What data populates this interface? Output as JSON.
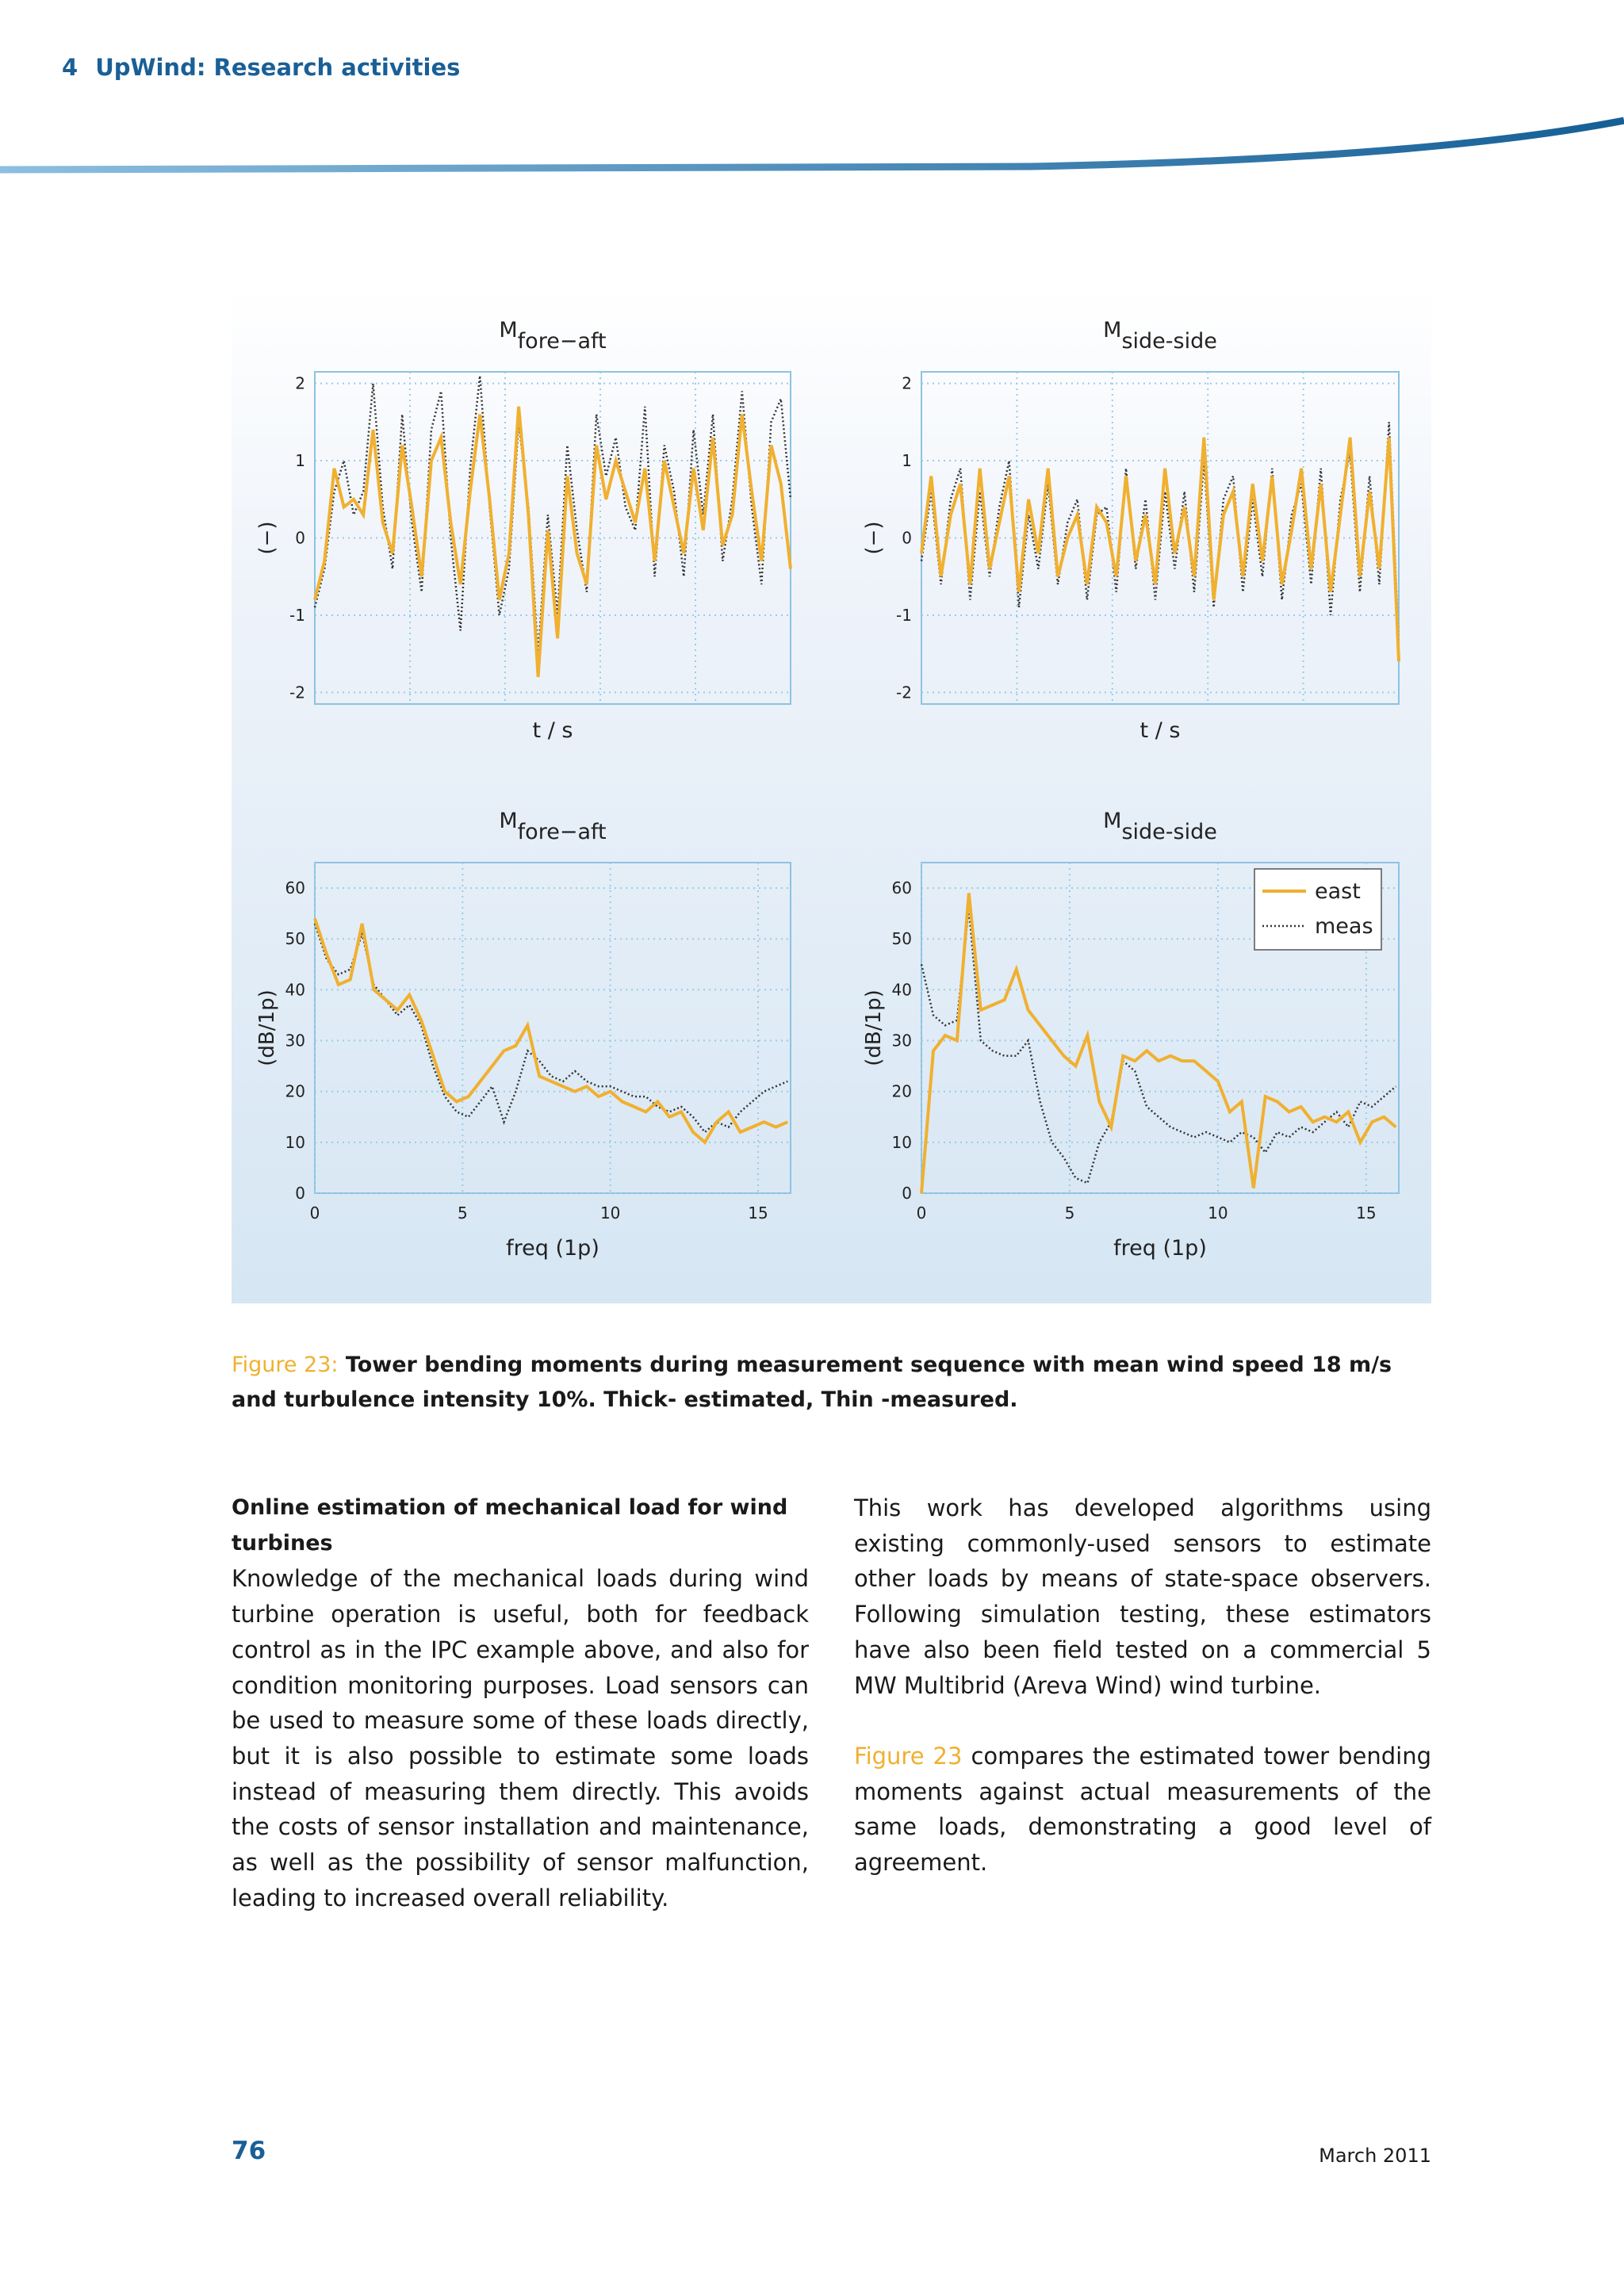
{
  "header": {
    "section": "4",
    "title": "UpWind: Research activities"
  },
  "chart_data": [
    {
      "type": "line",
      "title": {
        "main": "M",
        "sub": "fore−aft"
      },
      "y_label": "(−)",
      "x_label": "t / s",
      "ylim": [
        -2.15,
        2.15
      ],
      "yticks": [
        -2,
        -1,
        0,
        1,
        2
      ],
      "grid": true,
      "series": [
        {
          "color": "#f0b030",
          "line_style": "solid",
          "values": [
            -0.8,
            -0.3,
            0.9,
            0.4,
            0.5,
            0.3,
            1.4,
            0.2,
            -0.2,
            1.2,
            0.4,
            -0.5,
            1.0,
            1.3,
            0.2,
            -0.6,
            0.6,
            1.6,
            0.5,
            -0.8,
            -0.2,
            1.7,
            0.3,
            -1.8,
            0.1,
            -1.3,
            0.8,
            -0.2,
            -0.6,
            1.2,
            0.5,
            1.0,
            0.6,
            0.2,
            0.9,
            -0.3,
            1.0,
            0.4,
            -0.2,
            0.9,
            0.1,
            1.3,
            -0.1,
            0.3,
            1.6,
            0.6,
            -0.3,
            1.2,
            0.7,
            -0.4
          ]
        },
        {
          "color": "#333333",
          "line_style": "dotted",
          "values": [
            -0.9,
            -0.4,
            0.6,
            1.0,
            0.3,
            0.6,
            2.0,
            0.4,
            -0.4,
            1.6,
            0.2,
            -0.7,
            1.4,
            1.9,
            0.0,
            -1.2,
            0.9,
            2.1,
            0.4,
            -1.0,
            -0.4,
            1.5,
            0.4,
            -1.5,
            0.3,
            -1.0,
            1.2,
            0.1,
            -0.7,
            1.6,
            0.8,
            1.3,
            0.4,
            0.1,
            1.7,
            -0.5,
            1.2,
            0.6,
            -0.5,
            1.4,
            0.3,
            1.6,
            -0.3,
            0.5,
            1.9,
            0.4,
            -0.6,
            1.5,
            1.8,
            0.5
          ]
        }
      ]
    },
    {
      "type": "line",
      "title": {
        "main": "M",
        "sub": "side-side"
      },
      "y_label": "(−)",
      "x_label": "t / s",
      "ylim": [
        -2.15,
        2.15
      ],
      "yticks": [
        -2,
        -1,
        0,
        1,
        2
      ],
      "grid": true,
      "series": [
        {
          "color": "#f0b030",
          "line_style": "solid",
          "values": [
            -0.2,
            0.8,
            -0.5,
            0.3,
            0.7,
            -0.6,
            0.9,
            -0.4,
            0.2,
            0.8,
            -0.7,
            0.5,
            -0.2,
            0.9,
            -0.5,
            0.0,
            0.3,
            -0.6,
            0.4,
            0.2,
            -0.5,
            0.8,
            -0.3,
            0.3,
            -0.6,
            0.9,
            -0.2,
            0.4,
            -0.5,
            1.3,
            -0.8,
            0.3,
            0.6,
            -0.5,
            0.7,
            -0.3,
            0.8,
            -0.6,
            0.1,
            0.9,
            -0.4,
            0.7,
            -0.7,
            0.3,
            1.3,
            -0.5,
            0.6,
            -0.4,
            1.3,
            -1.6
          ]
        },
        {
          "color": "#333333",
          "line_style": "dotted",
          "values": [
            -0.3,
            0.6,
            -0.6,
            0.5,
            0.9,
            -0.8,
            0.6,
            -0.5,
            0.4,
            1.0,
            -0.9,
            0.3,
            -0.4,
            0.7,
            -0.6,
            0.2,
            0.5,
            -0.8,
            0.3,
            0.4,
            -0.7,
            0.9,
            -0.4,
            0.5,
            -0.8,
            0.6,
            -0.4,
            0.6,
            -0.7,
            1.0,
            -0.9,
            0.5,
            0.8,
            -0.7,
            0.5,
            -0.5,
            0.9,
            -0.8,
            0.3,
            0.7,
            -0.6,
            0.9,
            -1.0,
            0.5,
            1.1,
            -0.7,
            0.8,
            -0.6,
            1.5,
            -1.4
          ]
        }
      ]
    },
    {
      "type": "line",
      "title": {
        "main": "M",
        "sub": "fore−aft"
      },
      "y_label": "(dB/1p)",
      "x_label": "freq (1p)",
      "xlim": [
        0,
        16.1
      ],
      "xticks": [
        0,
        5,
        10,
        15
      ],
      "ylim": [
        0,
        65
      ],
      "yticks": [
        0,
        10,
        20,
        30,
        40,
        50,
        60
      ],
      "grid": true,
      "x": [
        0,
        0.4,
        0.8,
        1.2,
        1.6,
        2.0,
        2.4,
        2.8,
        3.2,
        3.6,
        4.0,
        4.4,
        4.8,
        5.2,
        5.6,
        6.0,
        6.4,
        6.8,
        7.2,
        7.6,
        8.0,
        8.4,
        8.8,
        9.2,
        9.6,
        10.0,
        10.4,
        10.8,
        11.2,
        11.6,
        12.0,
        12.4,
        12.8,
        13.2,
        13.6,
        14.0,
        14.4,
        14.8,
        15.2,
        15.6,
        16.0
      ],
      "series": [
        {
          "color": "#f0b030",
          "line_style": "solid",
          "values": [
            54,
            47,
            41,
            42,
            53,
            40,
            38,
            36,
            39,
            34,
            27,
            20,
            18,
            19,
            22,
            25,
            28,
            29,
            33,
            23,
            22,
            21,
            20,
            21,
            19,
            20,
            18,
            17,
            16,
            18,
            15,
            16,
            12,
            10,
            14,
            16,
            12,
            13,
            14,
            13,
            14
          ]
        },
        {
          "color": "#333333",
          "line_style": "dotted",
          "values": [
            53,
            46,
            43,
            44,
            51,
            41,
            38,
            35,
            37,
            33,
            25,
            19,
            16,
            15,
            18,
            21,
            14,
            20,
            28,
            26,
            23,
            22,
            24,
            22,
            21,
            21,
            20,
            19,
            19,
            17,
            16,
            17,
            15,
            12,
            14,
            13,
            16,
            18,
            20,
            21,
            22
          ]
        }
      ]
    },
    {
      "type": "line",
      "title": {
        "main": "M",
        "sub": "side-side"
      },
      "y_label": "(dB/1p)",
      "x_label": "freq (1p)",
      "xlim": [
        0,
        16.1
      ],
      "xticks": [
        0,
        5,
        10,
        15
      ],
      "ylim": [
        0,
        65
      ],
      "yticks": [
        0,
        10,
        20,
        30,
        40,
        50,
        60
      ],
      "grid": true,
      "legend": "upper right",
      "x": [
        0,
        0.4,
        0.8,
        1.2,
        1.6,
        2.0,
        2.4,
        2.8,
        3.2,
        3.6,
        4.0,
        4.4,
        4.8,
        5.2,
        5.6,
        6.0,
        6.4,
        6.8,
        7.2,
        7.6,
        8.0,
        8.4,
        8.8,
        9.2,
        9.6,
        10.0,
        10.4,
        10.8,
        11.2,
        11.6,
        12.0,
        12.4,
        12.8,
        13.2,
        13.6,
        14.0,
        14.4,
        14.8,
        15.2,
        15.6,
        16.0
      ],
      "series": [
        {
          "name": "east",
          "color": "#f0b030",
          "line_style": "solid",
          "values": [
            0,
            28,
            31,
            30,
            59,
            36,
            37,
            38,
            44,
            36,
            33,
            30,
            27,
            25,
            31,
            18,
            13,
            27,
            26,
            28,
            26,
            27,
            26,
            26,
            24,
            22,
            16,
            18,
            1,
            19,
            18,
            16,
            17,
            14,
            15,
            14,
            16,
            10,
            14,
            15,
            13
          ]
        },
        {
          "name": "meas",
          "color": "#333333",
          "line_style": "dotted",
          "values": [
            45,
            35,
            33,
            34,
            56,
            30,
            28,
            27,
            27,
            30,
            18,
            10,
            7,
            3,
            2,
            10,
            14,
            26,
            24,
            17,
            15,
            13,
            12,
            11,
            12,
            11,
            10,
            12,
            11,
            8,
            12,
            11,
            13,
            12,
            14,
            16,
            13,
            18,
            17,
            19,
            21
          ]
        }
      ]
    }
  ],
  "caption": {
    "label": "Figure 23:",
    "text": "Tower bending moments during measurement sequence with mean wind speed 18 m/s and turbulence intensity 10%. Thick- estimated, Thin -measured."
  },
  "body": {
    "left": {
      "heading": "Online estimation of mechanical load for wind turbines",
      "text": "Knowledge of the mechanical loads during wind turbine operation is useful, both for feedback control as in the IPC example above, and also for condition monitoring purposes. Load sensors can be used to measure some of these loads directly, but it is also possible to estimate some loads instead of measuring them directly. This avoids the costs of sensor installation and maintenance, as well as the possibility of sensor malfunction, leading to increased overall reliability."
    },
    "right": {
      "paragraph": "This work has developed algorithms using existing commonly-used sensors to estimate other loads by means of state-space observers. Following simulation testing, these estimators have also been field tested on a commercial 5 MW Multibrid (Areva Wind) wind turbine.",
      "ref": "Figure 23",
      "ref_text": " compares the estimated tower bending moments against actual measurements of the same loads, demonstrating a good level of agreement."
    }
  },
  "footer": {
    "page": "76",
    "date": "March 2011"
  }
}
